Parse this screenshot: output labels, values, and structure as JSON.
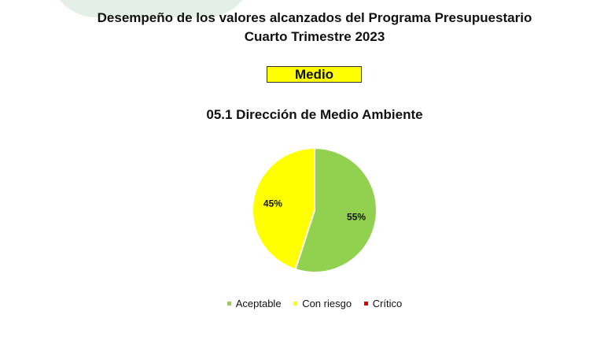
{
  "header": {
    "title_line1": "Desempeño de los valores alcanzados del Programa Presupuestario",
    "title_line2": "Cuarto Trimestre 2023"
  },
  "status": {
    "label": "Medio",
    "color": "#ffff00"
  },
  "chart_data": {
    "type": "pie",
    "title": "05.1 Dirección de Medio Ambiente",
    "categories": [
      "Aceptable",
      "Con riesgo",
      "Crítico"
    ],
    "values": [
      55,
      45,
      0
    ],
    "value_labels": [
      "55%",
      "45%",
      ""
    ],
    "colors": [
      "#92d050",
      "#ffff00",
      "#e00000"
    ],
    "legend_position": "bottom"
  }
}
